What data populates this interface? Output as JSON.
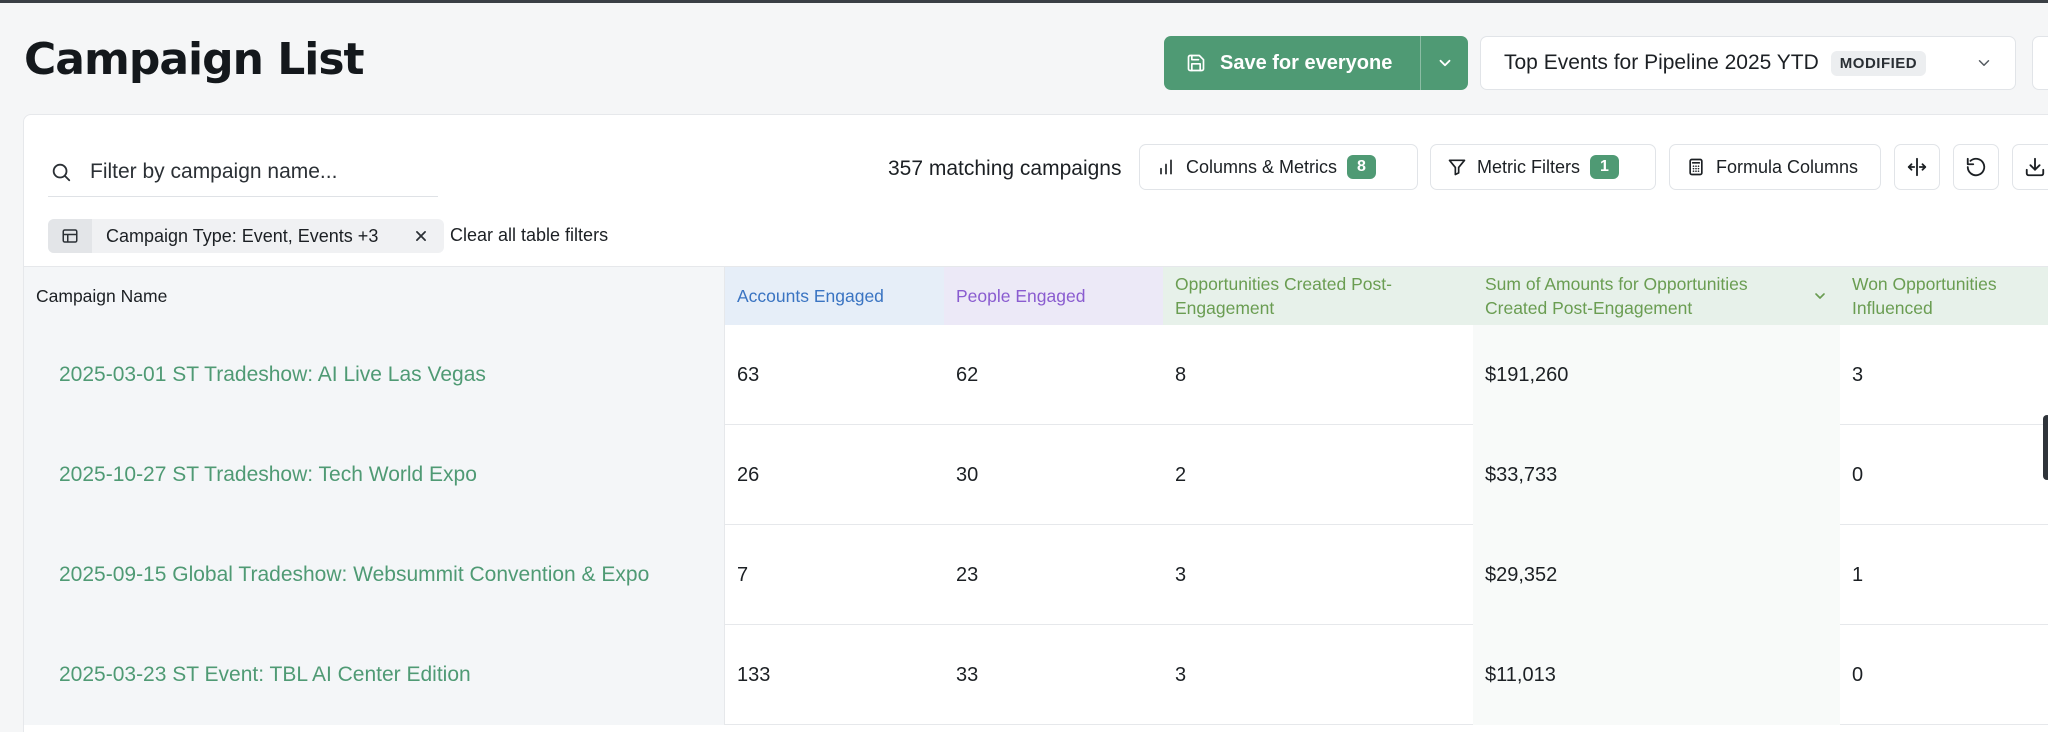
{
  "page": {
    "title": "Campaign List"
  },
  "header": {
    "save_label": "Save for everyone",
    "view_name": "Top Events for Pipeline 2025 YTD",
    "view_status": "MODIFIED"
  },
  "toolbar": {
    "search_placeholder": "Filter by campaign name...",
    "match_count": "357 matching campaigns",
    "columns_label": "Columns & Metrics",
    "columns_count": "8",
    "filters_label": "Metric Filters",
    "filters_count": "1",
    "formula_label": "Formula Columns"
  },
  "filters": {
    "chip_label": "Campaign Type: Event, Events +3",
    "clear_label": "Clear all table filters"
  },
  "table": {
    "columns": [
      "Campaign Name",
      "Accounts Engaged",
      "People Engaged",
      "Opportunities Created Post-Engagement",
      "Sum of Amounts for Opportunities Created Post-Engagement",
      "Won Opportunities Influenced"
    ],
    "rows": [
      {
        "name": "2025-03-01 ST Tradeshow: AI Live Las Vegas",
        "accounts": "63",
        "people": "62",
        "opps": "8",
        "sum": "$191,260",
        "won": "3"
      },
      {
        "name": "2025-10-27 ST Tradeshow: Tech World Expo",
        "accounts": "26",
        "people": "30",
        "opps": "2",
        "sum": "$33,733",
        "won": "0"
      },
      {
        "name": "2025-09-15 Global Tradeshow: Websummit Convention & Expo",
        "accounts": "7",
        "people": "23",
        "opps": "3",
        "sum": "$29,352",
        "won": "1"
      },
      {
        "name": "2025-03-23 ST Event: TBL AI Center Edition",
        "accounts": "133",
        "people": "33",
        "opps": "3",
        "sum": "$11,013",
        "won": "0"
      }
    ]
  },
  "icons": {
    "save": "floppy-disk-icon",
    "search": "search-icon",
    "columns": "bar-chart-icon",
    "filters": "funnel-icon",
    "formula": "calculator-icon",
    "resize": "column-resize-icon",
    "reset": "refresh-icon",
    "download": "download-icon",
    "chip": "table-icon"
  },
  "colors": {
    "accent": "#4f9a74",
    "accounts_header": "#3a74c2",
    "people_header": "#8a5cd0",
    "outcome_header": "#6a9d52"
  }
}
